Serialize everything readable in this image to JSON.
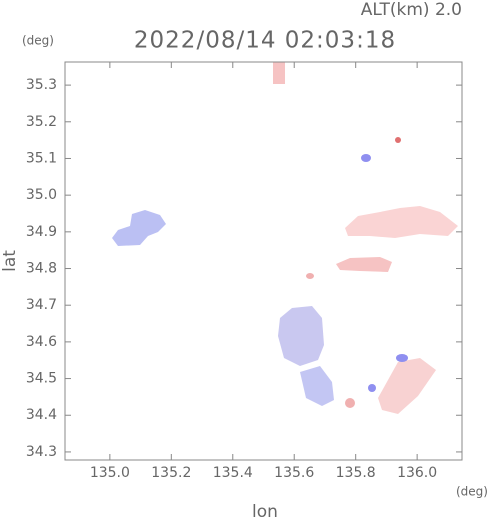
{
  "chart_data": {
    "type": "map",
    "title": "2022/08/14 02:03:18",
    "subtitle": "ALT(km) 2.0",
    "x_label": "lon",
    "y_label": "lat",
    "x_unit": "(deg)",
    "y_unit": "(deg)",
    "xlim": [
      134.854,
      136.146
    ],
    "ylim": [
      34.278,
      35.363
    ],
    "xticks": [
      {
        "value": 135,
        "label": "135.0"
      },
      135.2,
      135.4,
      135.6,
      135.8,
      {
        "value": 136,
        "label": "136.0"
      }
    ],
    "yticks": [
      35.3,
      35.2,
      35.1,
      {
        "value": 35,
        "label": "35.0"
      },
      34.9,
      34.8,
      34.7,
      34.6,
      34.5,
      34.4,
      34.3
    ]
  }
}
